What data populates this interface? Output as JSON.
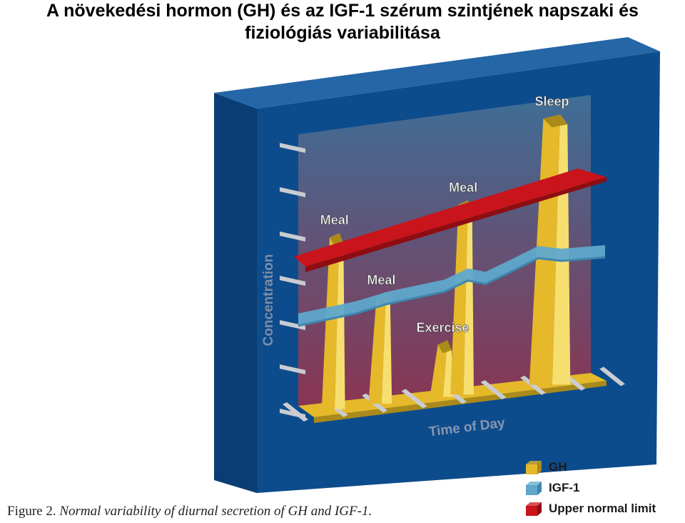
{
  "title_lines": [
    "A növekedési hormon (GH) és az IGF-1 szérum szintjének napszaki és",
    "fiziológiás variabilitása"
  ],
  "caption": {
    "label": "Figure 2.",
    "text": "Normal variability of diurnal secretion of GH and IGF-1."
  },
  "chart_data": {
    "type": "area",
    "xlabel": "Time of Day",
    "ylabel": "Concentration",
    "x_tick_count": 9,
    "y_tick_count": 7,
    "gh_peaks": [
      {
        "label": "Meal",
        "position": 0.12,
        "height": 0.62,
        "width": 0.08
      },
      {
        "label": "Meal",
        "position": 0.28,
        "height": 0.38,
        "width": 0.08
      },
      {
        "label": "Exercise",
        "position": 0.49,
        "height": 0.18,
        "width": 0.08
      },
      {
        "label": "Meal",
        "position": 0.56,
        "height": 0.68,
        "width": 0.08
      },
      {
        "label": "Sleep",
        "position": 0.86,
        "height": 0.95,
        "width": 0.14
      }
    ],
    "igf1_level": [
      [
        0.0,
        0.34
      ],
      [
        0.1,
        0.35
      ],
      [
        0.2,
        0.36
      ],
      [
        0.3,
        0.38
      ],
      [
        0.4,
        0.39
      ],
      [
        0.5,
        0.4
      ],
      [
        0.58,
        0.43
      ],
      [
        0.64,
        0.41
      ],
      [
        0.72,
        0.44
      ],
      [
        0.82,
        0.48
      ],
      [
        0.9,
        0.46
      ],
      [
        1.0,
        0.46
      ]
    ],
    "upper_normal_limit": [
      [
        0.0,
        0.55
      ],
      [
        1.0,
        0.72
      ]
    ],
    "legend": [
      {
        "name": "GH",
        "color": "#e5b92a"
      },
      {
        "name": "IGF-1",
        "color": "#5fa8cc"
      },
      {
        "name": "Upper normal limit",
        "color": "#c8141a"
      }
    ],
    "colors": {
      "frame_front": "#0d4c8c",
      "frame_side": "#0a3d73",
      "frame_top": "#2466a6",
      "plot_top": "#3e6e97",
      "plot_bottom": "#8a3552",
      "gh": "#e5b92a",
      "gh_light": "#f6df6f",
      "gh_dark": "#a98a1a",
      "igf1": "#5fa8cc",
      "igf1_dark": "#3f86ad",
      "limit": "#c8141a",
      "limit_dark": "#8e0d12",
      "tick": "#c9ccd1"
    }
  }
}
